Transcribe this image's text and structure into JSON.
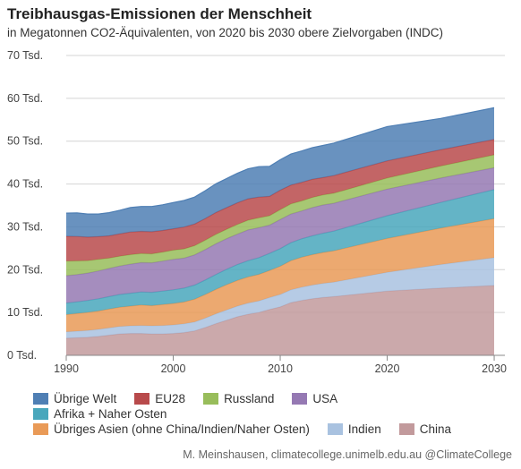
{
  "header": {
    "title": "Treibhausgas-Emissionen der Menschheit",
    "subtitle": "in Megatonnen CO2-Äquivalenten, von 2020 bis 2030 obere Zielvorgaben (INDC)"
  },
  "credit": "M. Meinshausen, climatecollege.unimelb.edu.au @ClimateCollege",
  "chart_data": {
    "type": "area",
    "stacked": true,
    "x": [
      1990,
      1991,
      1992,
      1993,
      1994,
      1995,
      1996,
      1997,
      1998,
      1999,
      2000,
      2001,
      2002,
      2003,
      2004,
      2005,
      2006,
      2007,
      2008,
      2009,
      2010,
      2011,
      2012,
      2013,
      2014,
      2015,
      2020,
      2025,
      2030
    ],
    "xlim": [
      1990,
      2031
    ],
    "x_ticks": [
      1990,
      2000,
      2010,
      2020,
      2030
    ],
    "ylim": [
      0,
      70000
    ],
    "y_ticks": [
      0,
      10000,
      20000,
      30000,
      40000,
      50000,
      60000,
      70000
    ],
    "y_tick_labels": [
      "0 Tsd.",
      "10 Tsd.",
      "20 Tsd.",
      "30 Tsd.",
      "40 Tsd.",
      "50 Tsd.",
      "60 Tsd.",
      "70 Tsd."
    ],
    "grid": true,
    "legend_position": "bottom",
    "series": [
      {
        "name": "China",
        "color": "#c29a9c",
        "values": [
          4000,
          4100,
          4200,
          4400,
          4700,
          5000,
          5100,
          5100,
          5000,
          5000,
          5100,
          5300,
          5700,
          6500,
          7400,
          8200,
          9000,
          9600,
          10000,
          10700,
          11300,
          12300,
          12800,
          13200,
          13500,
          13700,
          15000,
          15700,
          16300
        ]
      },
      {
        "name": "Indien",
        "color": "#a9c2e0",
        "values": [
          1500,
          1550,
          1600,
          1650,
          1700,
          1750,
          1800,
          1850,
          1900,
          1950,
          2000,
          2050,
          2100,
          2200,
          2300,
          2400,
          2500,
          2600,
          2700,
          2800,
          2900,
          3000,
          3100,
          3200,
          3300,
          3400,
          4400,
          5500,
          6500
        ]
      },
      {
        "name": "Übriges Asien (ohne China/Indien/Naher Osten)",
        "color": "#e99a57",
        "values": [
          4000,
          4100,
          4200,
          4300,
          4400,
          4500,
          4600,
          4800,
          4700,
          4900,
          5000,
          5100,
          5300,
          5500,
          5700,
          5900,
          6000,
          6100,
          6200,
          6300,
          6600,
          6800,
          7000,
          7100,
          7200,
          7300,
          7900,
          8500,
          9100
        ]
      },
      {
        "name": "Afrika + Naher Osten",
        "color": "#49a7bc",
        "values": [
          2700,
          2750,
          2800,
          2850,
          2900,
          2950,
          3000,
          3050,
          3100,
          3150,
          3200,
          3250,
          3300,
          3400,
          3500,
          3600,
          3700,
          3800,
          3900,
          4000,
          4100,
          4200,
          4300,
          4400,
          4500,
          4600,
          5300,
          6000,
          6800
        ]
      },
      {
        "name": "USA",
        "color": "#9579b3",
        "values": [
          6400,
          6350,
          6400,
          6500,
          6600,
          6650,
          6800,
          6850,
          6900,
          7000,
          7100,
          7000,
          7050,
          7100,
          7150,
          7150,
          7100,
          7200,
          7000,
          6600,
          6800,
          6700,
          6500,
          6600,
          6600,
          6500,
          6200,
          5700,
          5100
        ]
      },
      {
        "name": "Russland",
        "color": "#98bd5b",
        "values": [
          3400,
          3200,
          2900,
          2700,
          2400,
          2300,
          2200,
          2100,
          2100,
          2100,
          2150,
          2150,
          2150,
          2200,
          2200,
          2200,
          2250,
          2250,
          2300,
          2200,
          2300,
          2350,
          2350,
          2350,
          2350,
          2350,
          2600,
          2800,
          3000
        ]
      },
      {
        "name": "EU28",
        "color": "#b84a4b",
        "values": [
          5800,
          5700,
          5500,
          5300,
          5200,
          5200,
          5300,
          5200,
          5150,
          5050,
          5000,
          5100,
          5050,
          5050,
          5100,
          5050,
          5050,
          5000,
          4850,
          4500,
          4550,
          4400,
          4350,
          4250,
          4050,
          4100,
          4000,
          3800,
          3600
        ]
      },
      {
        "name": "Übrige Welt",
        "color": "#4f7fb4",
        "values": [
          5400,
          5500,
          5400,
          5300,
          5400,
          5500,
          5700,
          5800,
          5900,
          6000,
          6100,
          6200,
          6300,
          6500,
          6700,
          6800,
          6900,
          7000,
          7100,
          7000,
          7100,
          7250,
          7300,
          7400,
          7500,
          7600,
          8000,
          7300,
          7400
        ]
      }
    ]
  },
  "legend": {
    "rows": [
      [
        "Übrige Welt",
        "EU28",
        "Russland",
        "USA"
      ],
      [
        "Afrika + Naher Osten"
      ],
      [
        "Übriges Asien (ohne China/Indien/Naher Osten)",
        "Indien",
        "China"
      ]
    ]
  }
}
